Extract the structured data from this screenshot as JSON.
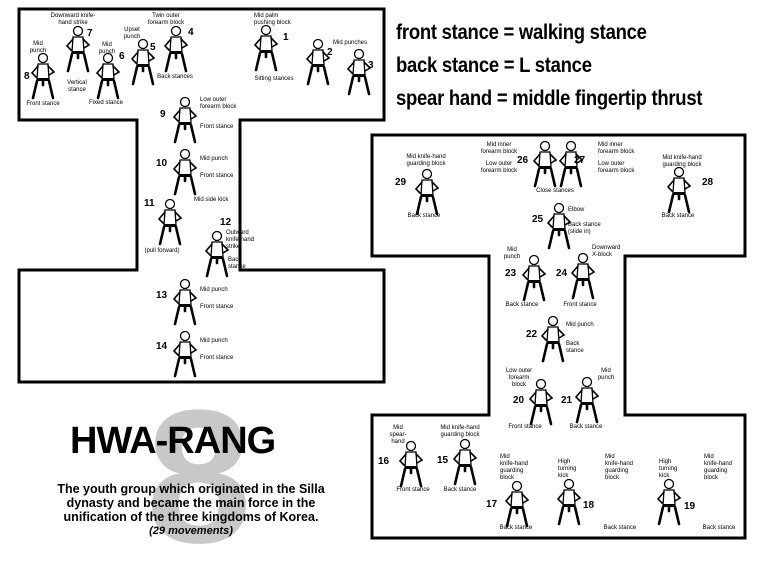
{
  "equivalences": [
    "front stance = walking stance",
    "back stance = L stance",
    "spear hand = middle fingertip thrust"
  ],
  "pattern": {
    "title": "HWA-RANG",
    "number": "8",
    "description": "The youth group which originated in the Silla dynasty and became the main force in the unification of the three kingdoms of Korea.",
    "movement_count": "(29 movements)"
  },
  "numbers": [
    "1",
    "2",
    "3",
    "4",
    "5",
    "6",
    "7",
    "8",
    "9",
    "10",
    "11",
    "12",
    "13",
    "14",
    "15",
    "16",
    "17",
    "18",
    "19",
    "20",
    "21",
    "22",
    "23",
    "24",
    "25",
    "26",
    "27",
    "28",
    "29"
  ],
  "labels": [
    "Downward knife-\nhand strike",
    "Mid\npunch",
    "Vertical\nstance",
    "Mid\npunch",
    "Upset\npunch",
    "Fixed stance",
    "Twin outer\nforearm block",
    "Back stances",
    "Mid palm\npushing block",
    "Mid punches",
    "Sitting stances",
    "Front stance",
    "Low outer\nforearm block",
    "Front stance",
    "Mid punch",
    "Front stance",
    "Mid side kick",
    "Outward\nknife-hand\nstrike",
    "Back\nstance",
    "(pull forward)",
    "Mid punch",
    "Front stance",
    "Mid punch",
    "Front stance",
    "Mid inner\nforearm block",
    "Low outer\nforearm block",
    "Mid inner\nforearm block",
    "Low outer\nforearm block",
    "Close stances",
    "Mid knife-hand\nguarding block",
    "Back stance",
    "Mid knife-hand\nguarding block",
    "Back stance",
    "Elbow",
    "Back stance\n(slide in)",
    "Mid\npunch",
    "Downward\nX-block",
    "Back stance",
    "Front stance",
    "Mid punch",
    "Back\nstance",
    "Low outer\nforearm\nblock",
    "Mid\npunch",
    "Front stance",
    "Back stance",
    "Mid\nspear-hand",
    "Front stance",
    "Mid knife-hand\nguarding block",
    "Back stance",
    "Mid\nknife-hand\nguarding\nblock",
    "Back stance",
    "High\nturning\nkick",
    "Mid\nknife-hand\nguarding\nblock",
    "Back stance",
    "High\nturning\nkick",
    "Mid\nknife-hand\nguarding\nblock",
    "Back stance"
  ],
  "figure_icons": [
    "martial-artist-icon-1",
    "martial-artist-icon-2",
    "martial-artist-icon-3",
    "martial-artist-icon-4",
    "martial-artist-icon-5",
    "martial-artist-icon-6",
    "martial-artist-icon-7",
    "martial-artist-icon-8",
    "martial-artist-icon-9",
    "martial-artist-icon-10",
    "martial-artist-icon-11",
    "martial-artist-icon-12",
    "martial-artist-icon-13",
    "martial-artist-icon-14",
    "martial-artist-icon-15",
    "martial-artist-icon-16",
    "martial-artist-icon-17",
    "martial-artist-icon-18",
    "martial-artist-icon-19",
    "martial-artist-icon-20",
    "martial-artist-icon-21",
    "martial-artist-icon-22",
    "martial-artist-icon-23",
    "martial-artist-icon-24",
    "martial-artist-icon-25",
    "martial-artist-icon-26",
    "martial-artist-icon-27",
    "martial-artist-icon-28",
    "martial-artist-icon-29"
  ]
}
